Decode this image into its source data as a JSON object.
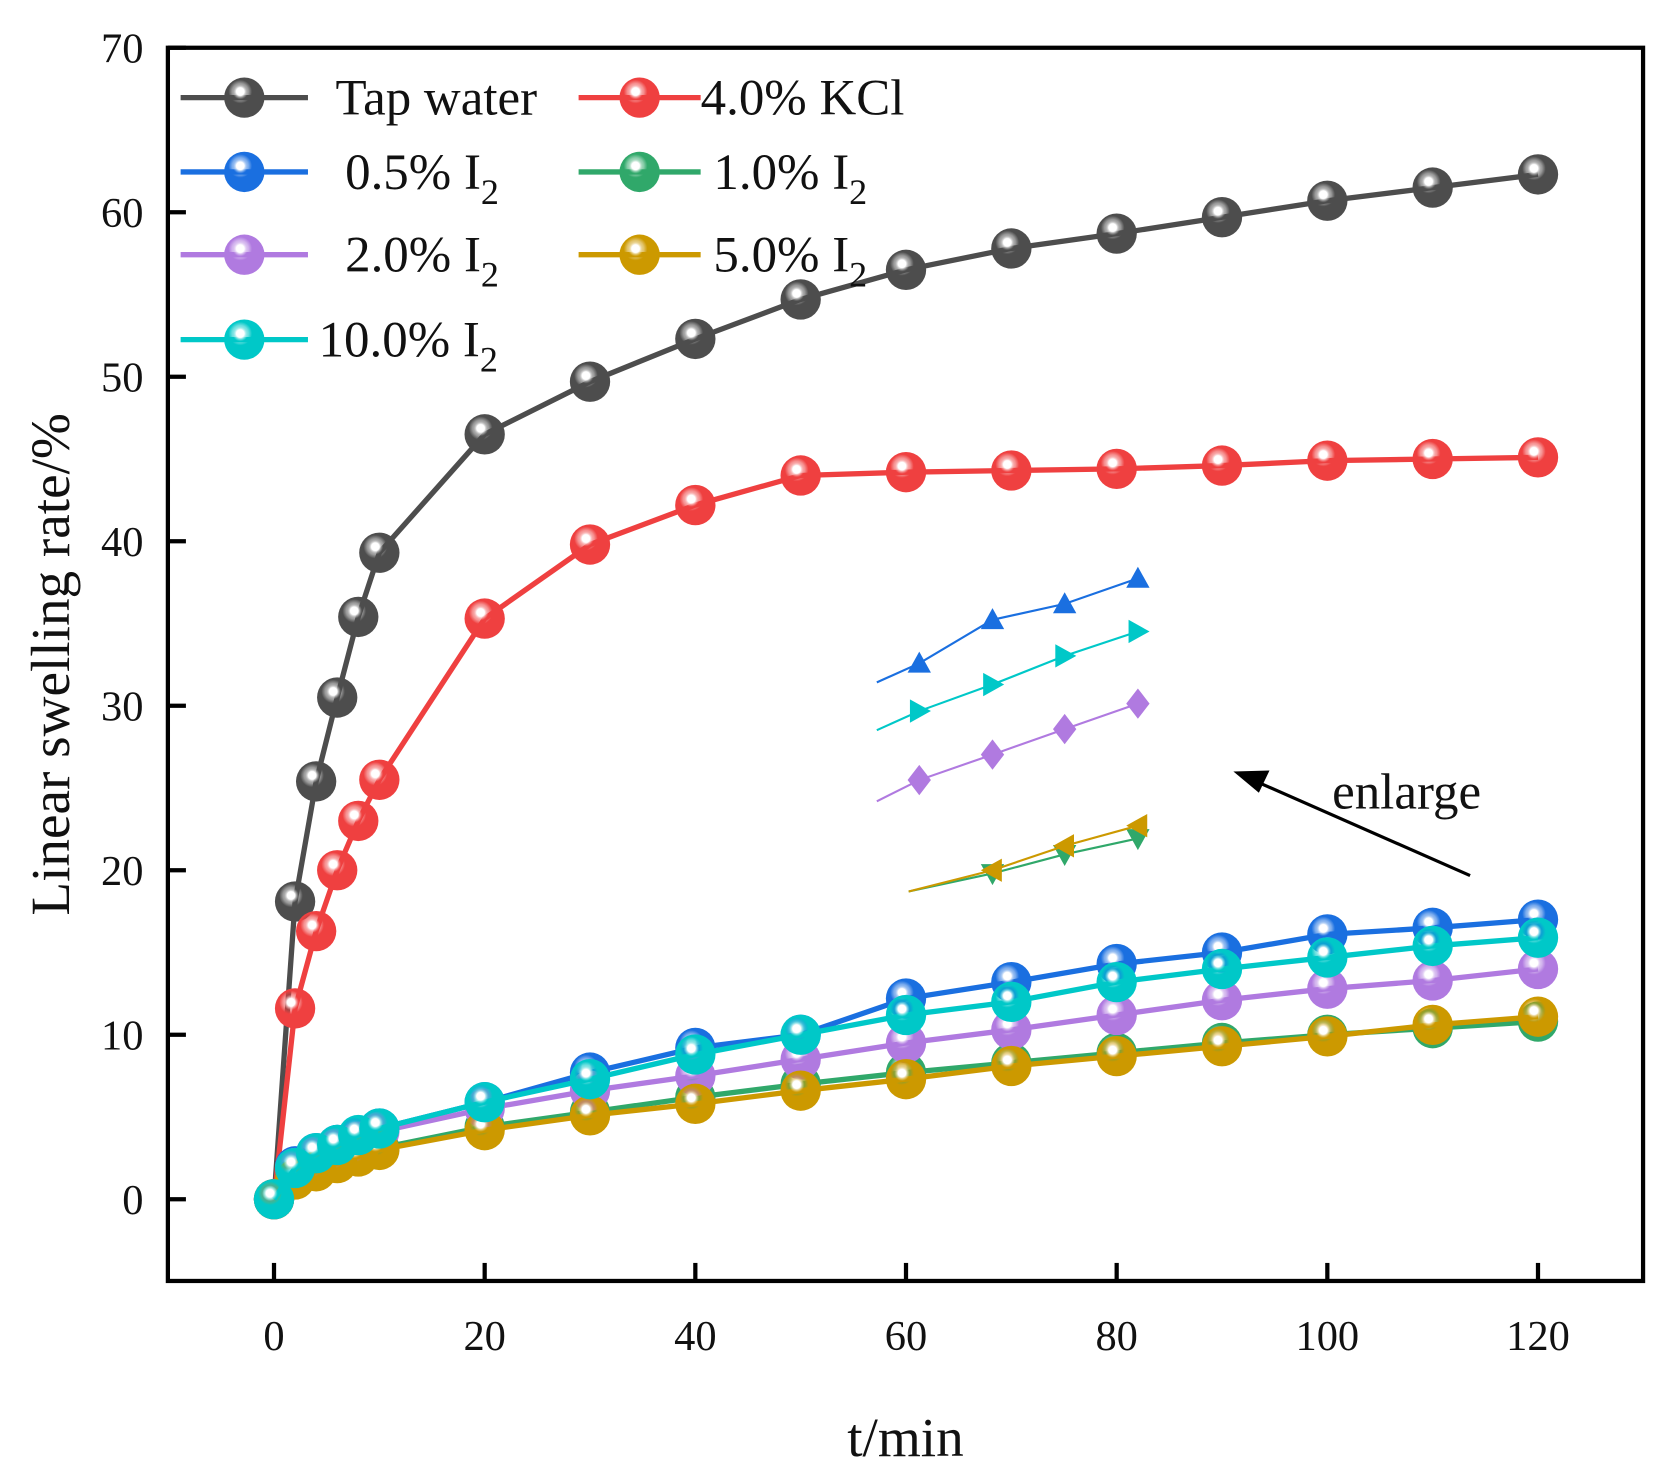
{
  "chart_data": {
    "type": "line",
    "xlabel": "t/min",
    "ylabel": "Linear swelling rate/%",
    "xlim": [
      -10,
      130
    ],
    "ylim": [
      -5,
      70
    ],
    "xticks": [
      0,
      20,
      40,
      60,
      80,
      100,
      120
    ],
    "yticks": [
      0,
      10,
      20,
      30,
      40,
      50,
      60,
      70
    ],
    "grid": false,
    "legend_position": "top-left",
    "x": [
      0,
      2,
      4,
      6,
      8,
      10,
      20,
      30,
      40,
      50,
      60,
      70,
      80,
      90,
      100,
      110,
      120
    ],
    "series": [
      {
        "label": "Tap water",
        "label_sub": "",
        "color": "#4d4d4d",
        "values": [
          0,
          18.1,
          25.4,
          30.5,
          35.4,
          39.3,
          46.5,
          49.7,
          52.3,
          54.7,
          56.5,
          57.8,
          58.7,
          59.7,
          60.7,
          61.5,
          62.3
        ]
      },
      {
        "label": "4.0% KCl",
        "label_sub": "",
        "color": "#ef4040",
        "values": [
          0,
          11.6,
          16.3,
          20.0,
          23.0,
          25.5,
          35.3,
          39.8,
          42.2,
          44.0,
          44.2,
          44.3,
          44.4,
          44.6,
          44.9,
          45.0,
          45.1
        ]
      },
      {
        "label": "0.5% I",
        "label_sub": "2",
        "color": "#1a6fe0",
        "values": [
          0,
          2.0,
          2.8,
          3.3,
          3.8,
          4.3,
          5.9,
          7.7,
          9.2,
          10.0,
          12.2,
          13.2,
          14.3,
          15.0,
          16.1,
          16.5,
          17.0
        ]
      },
      {
        "label": "1.0% I",
        "label_sub": "2",
        "color": "#30a86a",
        "values": [
          0,
          1.3,
          1.8,
          2.3,
          2.7,
          3.1,
          4.4,
          5.3,
          6.2,
          7.0,
          7.7,
          8.3,
          8.9,
          9.5,
          10.0,
          10.4,
          10.8
        ]
      },
      {
        "label": "2.0% I",
        "label_sub": "2",
        "color": "#b07ae0",
        "values": [
          0,
          1.9,
          2.6,
          3.1,
          3.5,
          4.1,
          5.5,
          6.6,
          7.5,
          8.5,
          9.5,
          10.3,
          11.2,
          12.1,
          12.8,
          13.3,
          14.0
        ]
      },
      {
        "label": "5.0% I",
        "label_sub": "2",
        "color": "#cc9900",
        "values": [
          0,
          1.2,
          1.7,
          2.2,
          2.6,
          3.0,
          4.2,
          5.1,
          5.8,
          6.6,
          7.3,
          8.1,
          8.7,
          9.3,
          9.9,
          10.6,
          11.1
        ]
      },
      {
        "label": "10.0% I",
        "label_sub": "2",
        "color": "#00c8c8",
        "values": [
          0,
          1.9,
          2.8,
          3.3,
          3.9,
          4.3,
          5.9,
          7.3,
          8.8,
          10.0,
          11.2,
          12.0,
          13.2,
          14.0,
          14.7,
          15.4,
          15.9
        ]
      }
    ],
    "annotations": [
      {
        "text": "enlarge"
      }
    ]
  }
}
